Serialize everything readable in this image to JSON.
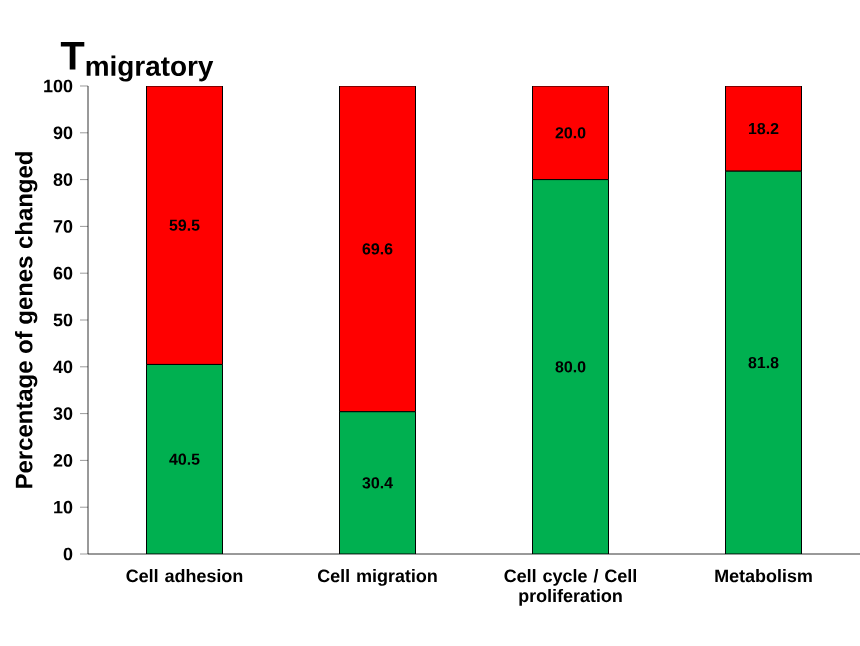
{
  "chart_data": {
    "type": "bar",
    "title": "\\text{T}_{\\text{migratory}}",
    "ylabel": "Percentage of genes changed",
    "categories": [
      "Cell adhesion",
      "Cell migration",
      "Cell cycle / Cell proliferation",
      "Metabolism"
    ],
    "stacked": true,
    "series": [
      {
        "color": "#00b050",
        "values": [
          40.5,
          30.4,
          80.0,
          81.8
        ],
        "value_labels": [
          "40.5",
          "30.4",
          "80.0",
          "81.8"
        ]
      },
      {
        "color": "#ff0000",
        "values": [
          59.5,
          69.6,
          20.0,
          18.2
        ],
        "value_labels": [
          "59.5",
          "69.6",
          "20.0",
          "18.2"
        ]
      }
    ],
    "ylim": [
      0,
      100
    ],
    "yticks": [
      0,
      10,
      20,
      30,
      40,
      50,
      60,
      70,
      80,
      90,
      100
    ],
    "grid": false
  }
}
